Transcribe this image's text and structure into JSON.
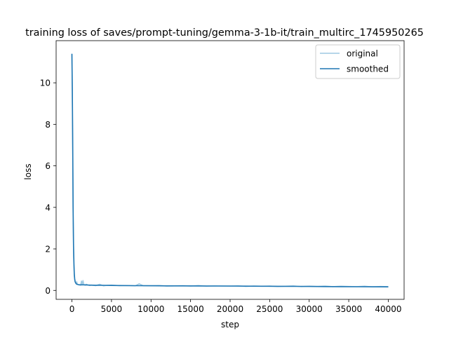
{
  "chart_data": {
    "type": "line",
    "title": "training loss of saves/prompt-tuning/gemma-3-1b-it/train_multirc_1745950265",
    "xlabel": "step",
    "ylabel": "loss",
    "xlim": [
      -2000,
      42000
    ],
    "ylim": [
      -0.43,
      12.03
    ],
    "xticks": [
      0,
      5000,
      10000,
      15000,
      20000,
      25000,
      30000,
      35000,
      40000
    ],
    "yticks": [
      0,
      2,
      4,
      6,
      8,
      10
    ],
    "grid": false,
    "legend_placement": "top-right",
    "series": [
      {
        "name": "original",
        "color": "#9ec9e2",
        "x": [
          0,
          50,
          100,
          150,
          200,
          250,
          300,
          350,
          400,
          500,
          600,
          700,
          800,
          900,
          1000,
          1100,
          1200,
          1300,
          1400,
          1500,
          1600,
          1700,
          1800,
          2000,
          2200,
          2500,
          3000,
          3500,
          4000,
          4500,
          5000,
          6000,
          7000,
          8000,
          8500,
          9000,
          10000,
          11000,
          12000,
          13000,
          14000,
          15000,
          16000,
          17000,
          18000,
          19000,
          20000,
          21000,
          22000,
          23000,
          24000,
          25000,
          26000,
          27000,
          28000,
          29000,
          30000,
          31000,
          32000,
          33000,
          34000,
          35000,
          36000,
          37000,
          38000,
          39000,
          40000
        ],
        "values": [
          11.4,
          9.2,
          6.3,
          3.6,
          1.9,
          1.1,
          0.7,
          0.5,
          0.4,
          0.34,
          0.42,
          0.3,
          0.28,
          0.26,
          0.27,
          0.25,
          0.45,
          0.3,
          0.48,
          0.28,
          0.26,
          0.25,
          0.3,
          0.27,
          0.24,
          0.26,
          0.23,
          0.3,
          0.22,
          0.25,
          0.26,
          0.23,
          0.24,
          0.22,
          0.32,
          0.23,
          0.22,
          0.24,
          0.21,
          0.22,
          0.23,
          0.21,
          0.24,
          0.2,
          0.22,
          0.21,
          0.2,
          0.22,
          0.19,
          0.21,
          0.2,
          0.21,
          0.19,
          0.2,
          0.22,
          0.18,
          0.2,
          0.19,
          0.21,
          0.18,
          0.2,
          0.19,
          0.18,
          0.2,
          0.17,
          0.19,
          0.18
        ]
      },
      {
        "name": "smoothed",
        "color": "#1f77b4",
        "x": [
          0,
          50,
          100,
          150,
          200,
          250,
          300,
          350,
          400,
          500,
          600,
          800,
          1000,
          1500,
          2000,
          3000,
          4000,
          5000,
          6000,
          8000,
          10000,
          12000,
          14000,
          16000,
          18000,
          20000,
          22000,
          24000,
          26000,
          28000,
          30000,
          32000,
          34000,
          36000,
          38000,
          40000
        ],
        "values": [
          11.4,
          9.6,
          6.8,
          4.0,
          2.2,
          1.3,
          0.8,
          0.55,
          0.42,
          0.34,
          0.3,
          0.28,
          0.27,
          0.27,
          0.26,
          0.25,
          0.245,
          0.24,
          0.235,
          0.23,
          0.225,
          0.22,
          0.218,
          0.215,
          0.212,
          0.21,
          0.205,
          0.2,
          0.198,
          0.195,
          0.19,
          0.185,
          0.18,
          0.178,
          0.175,
          0.17
        ]
      }
    ]
  }
}
